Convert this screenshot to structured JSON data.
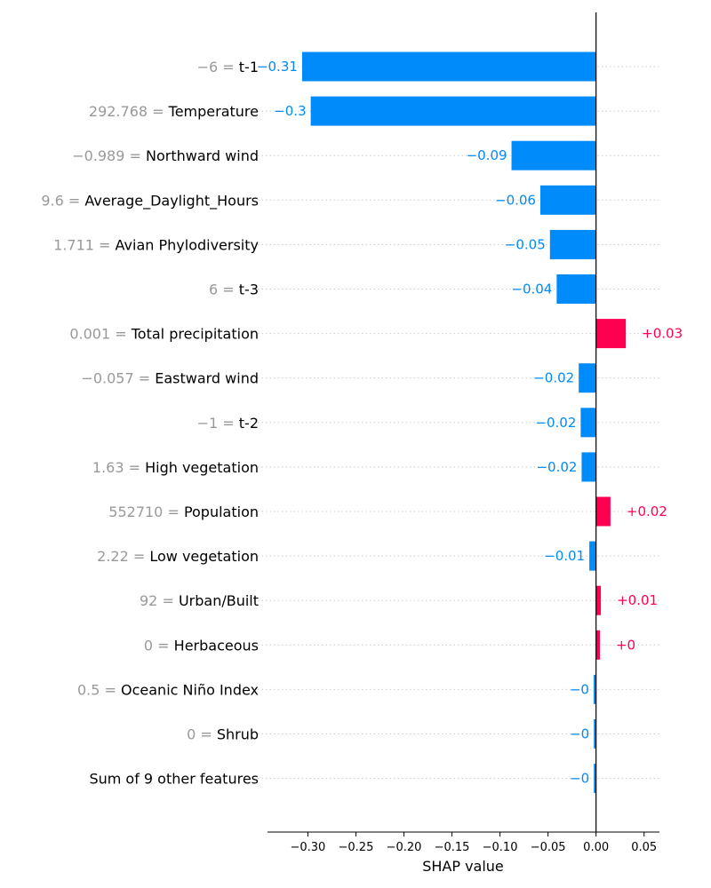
{
  "chart_data": {
    "type": "bar",
    "xlabel": "SHAP value",
    "xlim": [
      -0.342,
      0.066
    ],
    "x_ticks": [
      -0.3,
      -0.25,
      -0.2,
      -0.15,
      -0.1,
      -0.05,
      0.0,
      0.05
    ],
    "x_tick_labels": [
      "−0.30",
      "−0.25",
      "−0.20",
      "−0.15",
      "−0.10",
      "−0.05",
      "0.00",
      "0.05"
    ],
    "colors": {
      "positive": "#ff0051",
      "negative": "#008bfb",
      "feature_value_text": "#999999"
    },
    "features": [
      {
        "value_label": "−6 = ",
        "name": "t-1",
        "shap": -0.306,
        "label": "−0.31"
      },
      {
        "value_label": "292.768 = ",
        "name": "Temperature",
        "shap": -0.297,
        "label": "−0.3"
      },
      {
        "value_label": "−0.989 = ",
        "name": "Northward wind",
        "shap": -0.088,
        "label": "−0.09"
      },
      {
        "value_label": "9.6 = ",
        "name": "Average_Daylight_Hours",
        "shap": -0.058,
        "label": "−0.06"
      },
      {
        "value_label": "1.711 = ",
        "name": "Avian Phylodiversity",
        "shap": -0.048,
        "label": "−0.05"
      },
      {
        "value_label": "6 = ",
        "name": "t-3",
        "shap": -0.041,
        "label": "−0.04"
      },
      {
        "value_label": "0.001 = ",
        "name": "Total precipitation",
        "shap": 0.031,
        "label": "+0.03"
      },
      {
        "value_label": "−0.057 = ",
        "name": "Eastward wind",
        "shap": -0.018,
        "label": "−0.02"
      },
      {
        "value_label": "−1 = ",
        "name": "t-2",
        "shap": -0.016,
        "label": "−0.02"
      },
      {
        "value_label": "1.63 = ",
        "name": "High vegetation",
        "shap": -0.015,
        "label": "−0.02"
      },
      {
        "value_label": "552710 = ",
        "name": "Population",
        "shap": 0.015,
        "label": "+0.02"
      },
      {
        "value_label": "2.22 = ",
        "name": "Low vegetation",
        "shap": -0.007,
        "label": "−0.01"
      },
      {
        "value_label": "92 = ",
        "name": "Urban/Built",
        "shap": 0.005,
        "label": "+0.01"
      },
      {
        "value_label": "0 = ",
        "name": "Herbaceous",
        "shap": 0.004,
        "label": "+0"
      },
      {
        "value_label": "0.5 = ",
        "name": "Oceanic Niño Index",
        "shap": -0.0025,
        "label": "−0"
      },
      {
        "value_label": "0 = ",
        "name": "Shrub",
        "shap": -0.0022,
        "label": "−0"
      },
      {
        "value_label": "",
        "name": "Sum of 9 other features",
        "shap": -0.0022,
        "label": "−0"
      }
    ]
  }
}
